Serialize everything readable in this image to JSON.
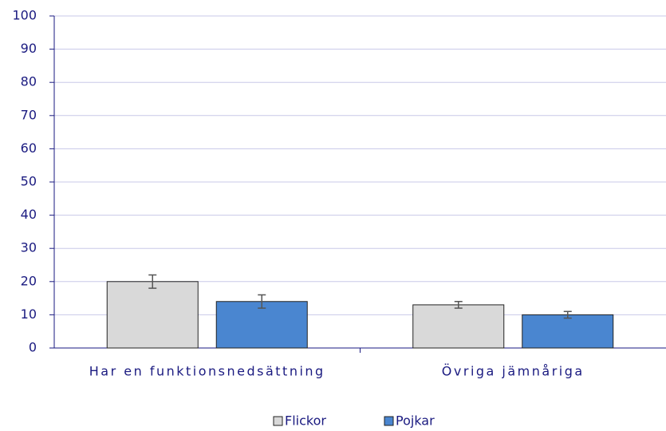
{
  "chart_data": {
    "type": "bar",
    "categories": [
      "Har en funktionsnedsättning",
      "Övriga jämnåriga"
    ],
    "series": [
      {
        "name": "Flickor",
        "color": "#d9d9d9",
        "values": [
          20,
          13
        ],
        "errors": [
          2,
          1
        ]
      },
      {
        "name": "Pojkar",
        "color": "#4a86d0",
        "values": [
          14,
          10
        ],
        "errors": [
          2,
          1
        ]
      }
    ],
    "ylim": [
      0,
      100
    ],
    "yticks": [
      0,
      10,
      20,
      30,
      40,
      50,
      60,
      70,
      80,
      90,
      100
    ],
    "grid": true,
    "legend": "bottom"
  }
}
